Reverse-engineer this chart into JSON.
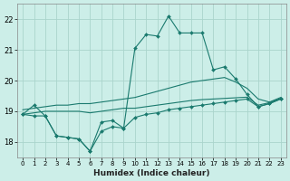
{
  "xlabel": "Humidex (Indice chaleur)",
  "bg_color": "#cceee8",
  "line_color": "#1a7a6e",
  "grid_color": "#aad4cc",
  "x": [
    0,
    1,
    2,
    3,
    4,
    5,
    6,
    7,
    8,
    9,
    10,
    11,
    12,
    13,
    14,
    15,
    16,
    17,
    18,
    19,
    20,
    21,
    22,
    23
  ],
  "y_top": [
    18.9,
    19.2,
    18.85,
    18.2,
    18.15,
    18.1,
    17.7,
    18.65,
    18.7,
    18.45,
    21.05,
    21.5,
    21.45,
    22.1,
    21.55,
    21.55,
    21.55,
    20.35,
    20.45,
    20.05,
    19.55,
    19.15,
    19.25,
    19.4
  ],
  "y_upper_smooth": [
    19.05,
    19.1,
    19.15,
    19.2,
    19.2,
    19.25,
    19.25,
    19.3,
    19.35,
    19.4,
    19.45,
    19.55,
    19.65,
    19.75,
    19.85,
    19.95,
    20.0,
    20.05,
    20.1,
    19.95,
    19.75,
    19.4,
    19.3,
    19.45
  ],
  "y_lower_smooth": [
    18.9,
    18.95,
    19.0,
    19.0,
    19.0,
    19.0,
    18.95,
    19.0,
    19.05,
    19.1,
    19.1,
    19.15,
    19.2,
    19.25,
    19.3,
    19.35,
    19.38,
    19.4,
    19.42,
    19.44,
    19.46,
    19.2,
    19.28,
    19.42
  ],
  "y_bottom": [
    18.9,
    18.85,
    18.85,
    18.2,
    18.15,
    18.1,
    17.7,
    18.35,
    18.5,
    18.45,
    18.8,
    18.9,
    18.95,
    19.05,
    19.1,
    19.15,
    19.2,
    19.25,
    19.3,
    19.35,
    19.4,
    19.15,
    19.25,
    19.4
  ],
  "yticks": [
    18,
    19,
    20,
    21,
    22
  ],
  "ylim": [
    17.5,
    22.5
  ],
  "xlim": [
    -0.5,
    23.5
  ],
  "tick_fontsize": 6,
  "xlabel_fontsize": 6.5
}
